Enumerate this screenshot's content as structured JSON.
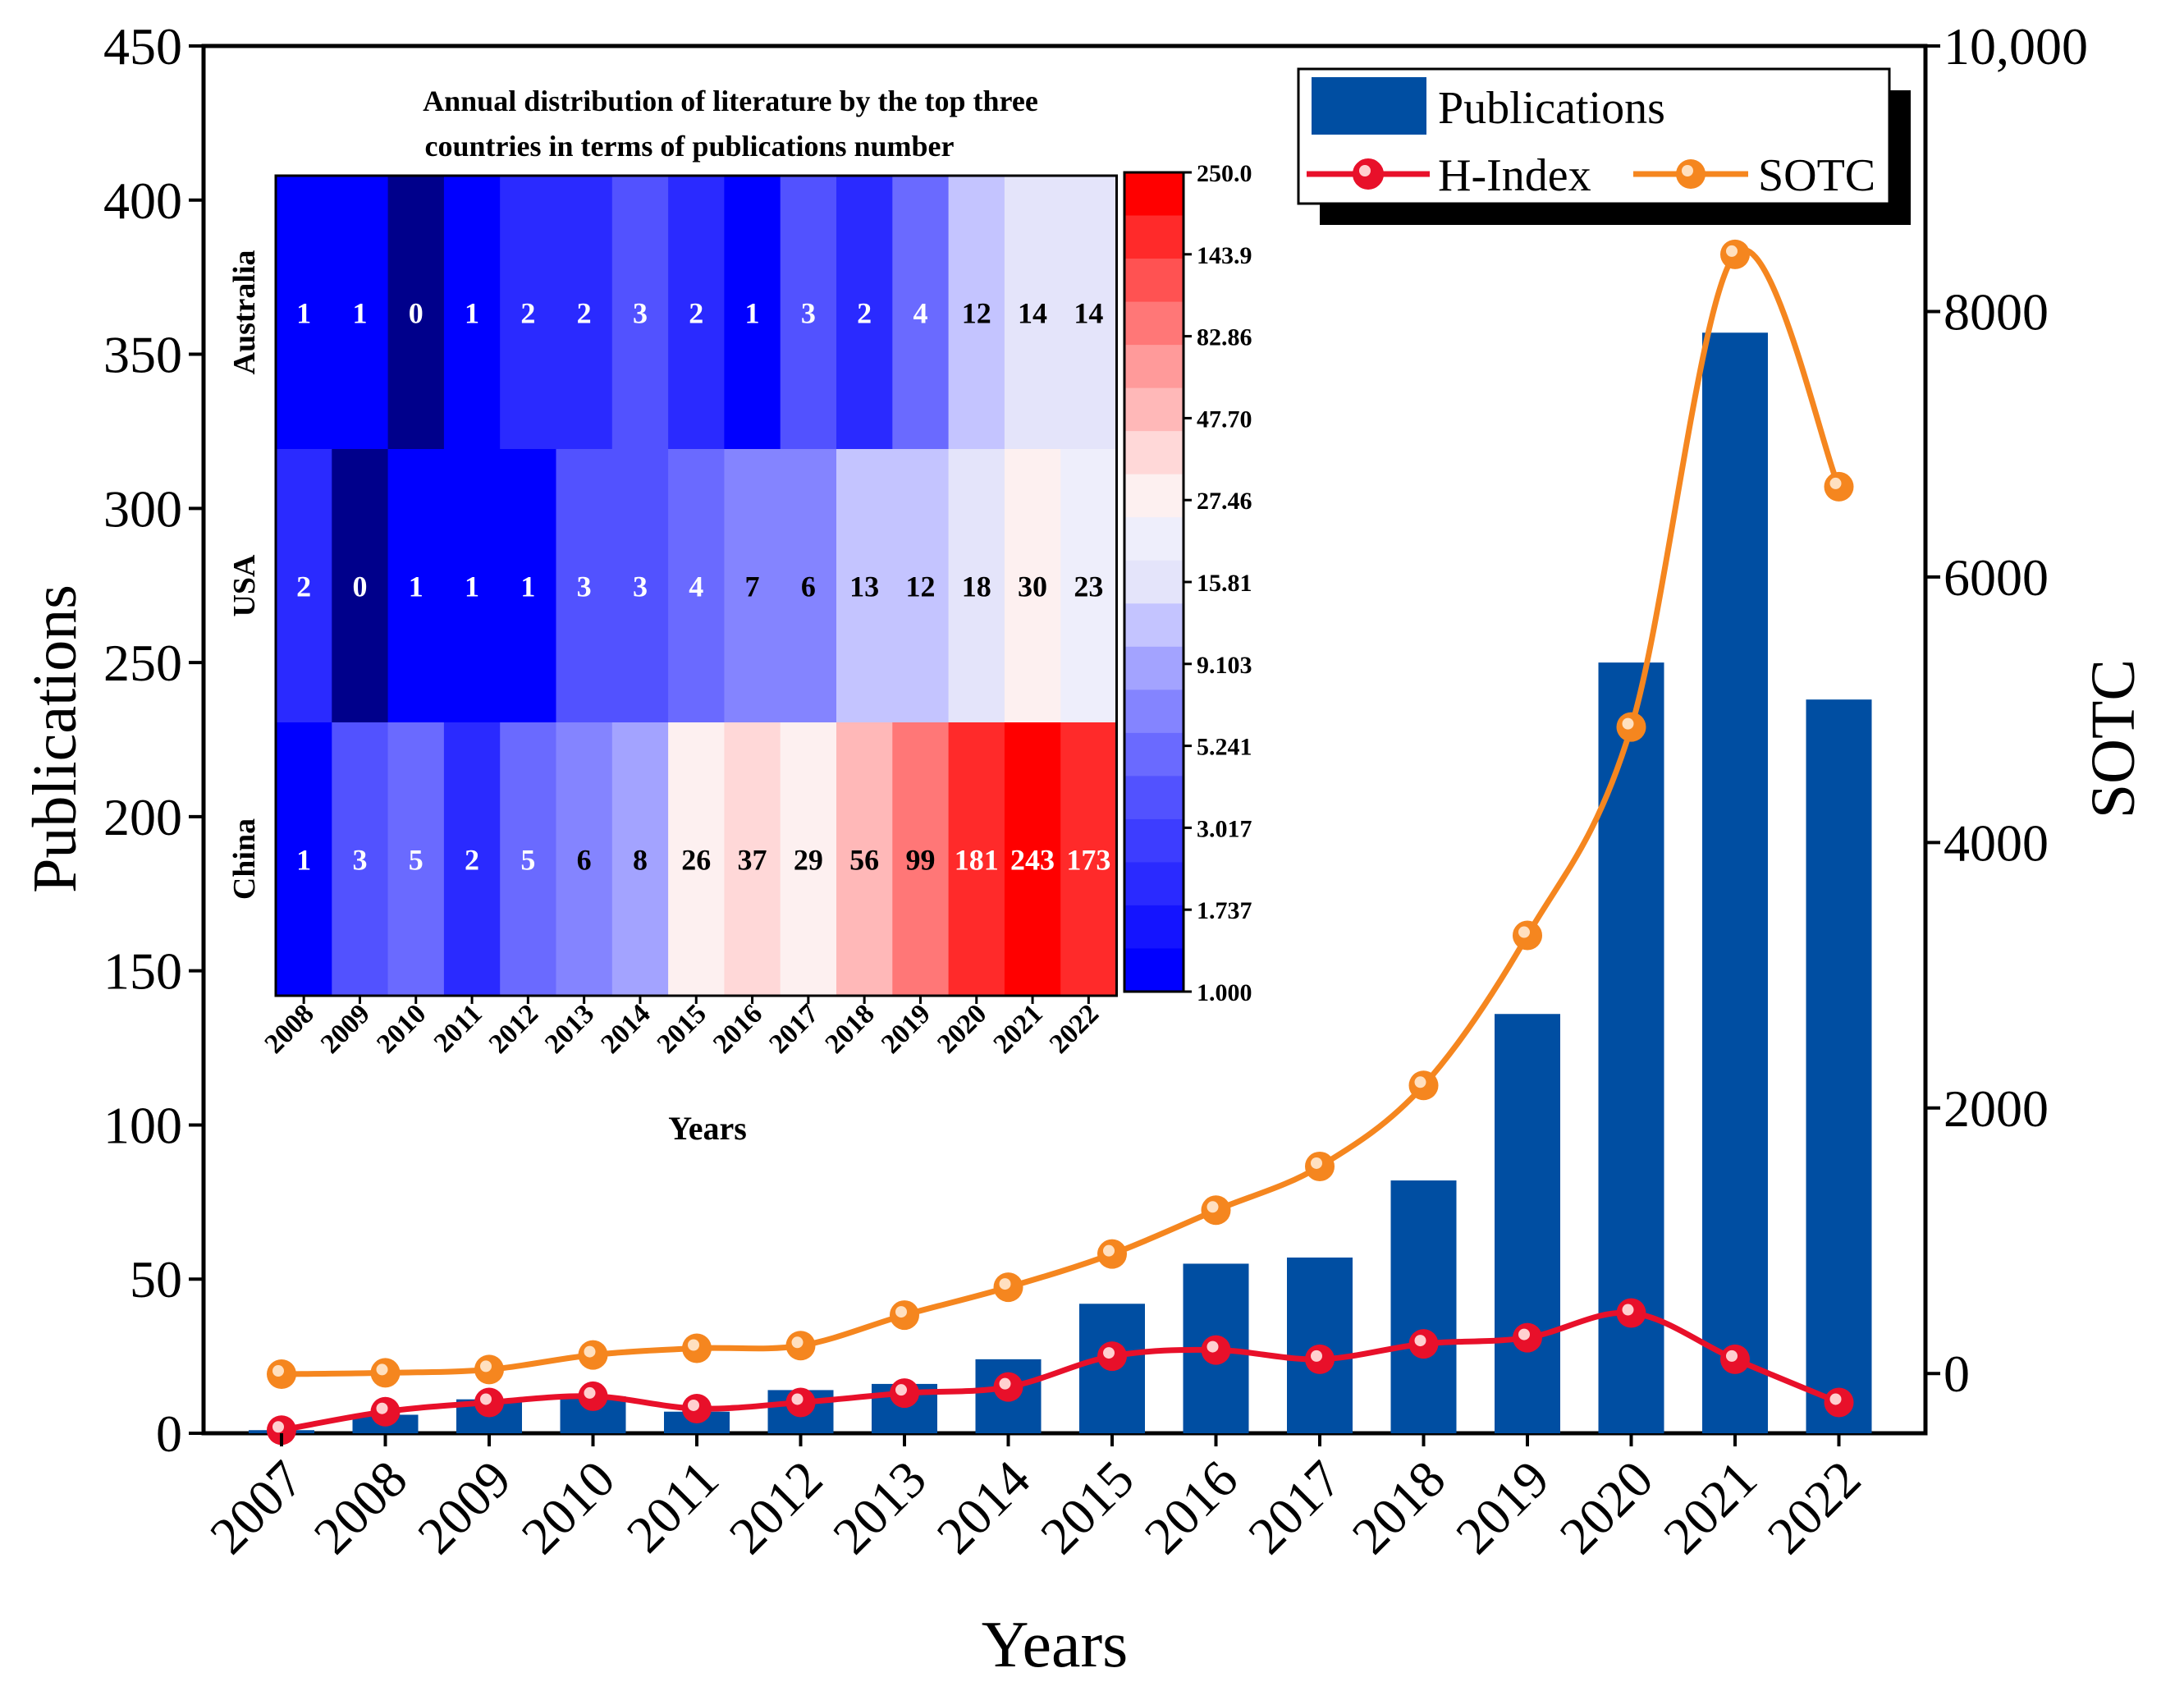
{
  "colors": {
    "bar": "#004ea2",
    "hindex": "#e8102a",
    "sotc": "#f5861f",
    "frame": "#000000"
  },
  "chart_data": [
    {
      "type": "bar+line",
      "categories": [
        "2007",
        "2008",
        "2009",
        "2010",
        "2011",
        "2012",
        "2013",
        "2014",
        "2015",
        "2016",
        "2017",
        "2018",
        "2019",
        "2020",
        "2021",
        "2022"
      ],
      "xlabel": "Years",
      "ylabel": "Publications",
      "y2label": "SOTC",
      "ylim": [
        0,
        450
      ],
      "y2lim": [
        -450,
        10000
      ],
      "yticks": [
        "0",
        "50",
        "100",
        "150",
        "200",
        "250",
        "300",
        "350",
        "400",
        "450"
      ],
      "y2ticks": [
        "0",
        "2000",
        "4000",
        "6000",
        "8000",
        "10,000"
      ],
      "y2tick_values": [
        0,
        2000,
        4000,
        6000,
        8000,
        10000
      ],
      "legend_position": "top-right",
      "series": [
        {
          "name": "Publications",
          "kind": "bar",
          "axis": "left",
          "values": [
            1,
            6,
            11,
            12,
            7,
            14,
            16,
            24,
            42,
            55,
            57,
            82,
            136,
            250,
            357,
            238
          ]
        },
        {
          "name": "H-Index",
          "kind": "line",
          "axis": "left",
          "values": [
            1,
            7,
            10,
            12,
            8,
            10,
            13,
            15,
            25,
            27,
            24,
            29,
            31,
            39,
            24,
            10
          ]
        },
        {
          "name": "SOTC",
          "kind": "line",
          "axis": "right",
          "values": [
            -5,
            5,
            30,
            140,
            190,
            210,
            440,
            650,
            900,
            1230,
            1560,
            2170,
            3300,
            4870,
            8430,
            6680
          ]
        }
      ]
    },
    {
      "type": "heatmap",
      "title_line1": "Annual distribution of literature by the top three",
      "title_line2": "countries in terms of publications number",
      "xlabel": "Years",
      "columns": [
        "2008",
        "2009",
        "2010",
        "2011",
        "2012",
        "2013",
        "2014",
        "2015",
        "2016",
        "2017",
        "2018",
        "2019",
        "2020",
        "2021",
        "2022"
      ],
      "rows": [
        {
          "label": "Australia",
          "values": [
            "1",
            "1",
            "0",
            "1",
            "2",
            "2",
            "3",
            "2",
            "1",
            "3",
            "2",
            "4",
            "12",
            "14",
            "14"
          ]
        },
        {
          "label": "USA",
          "values": [
            "2",
            "0",
            "1",
            "1",
            "1",
            "3",
            "3",
            "4",
            "7",
            "6",
            "13",
            "12",
            "18",
            "30",
            "23"
          ]
        },
        {
          "label": "China",
          "values": [
            "1",
            "3",
            "5",
            "2",
            "5",
            "6",
            "8",
            "26",
            "37",
            "29",
            "56",
            "99",
            "181",
            "243",
            "173"
          ]
        }
      ],
      "colorbar_labels": [
        "250.0",
        "143.9",
        "82.86",
        "47.70",
        "27.46",
        "15.81",
        "9.103",
        "5.241",
        "3.017",
        "1.737",
        "1.000"
      ],
      "color_scale": [
        "#00008b",
        "#0000ff",
        "#1414ff",
        "#2a2aff",
        "#3d3dff",
        "#5252ff",
        "#6a6aff",
        "#8484ff",
        "#a3a3ff",
        "#c4c4ff",
        "#e4e4fa",
        "#eeeefb",
        "#fdf0f0",
        "#ffd8d8",
        "#ffb8b8",
        "#ff9a9a",
        "#ff7777",
        "#ff5252",
        "#ff2a2a",
        "#ff0000"
      ]
    }
  ]
}
